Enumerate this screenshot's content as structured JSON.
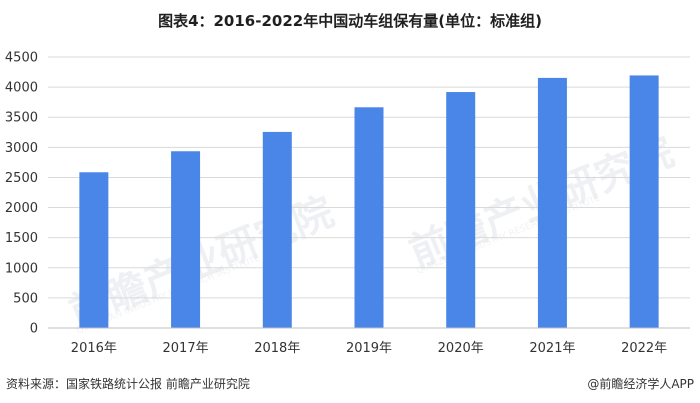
{
  "title": "图表4：2016-2022年中国动车组保有量(单位：标准组)",
  "footer": {
    "source": "资料来源：国家铁路统计公报 前瞻产业研究院",
    "credit": "@前瞻经济学人APP"
  },
  "watermark": {
    "text": "前瞻产业研究院",
    "sub": "QIANZHAN INDUSTRY RESEARCH INSTITUTE"
  },
  "colors": {
    "bar": "#4a86e8",
    "grid": "#d9d9d9",
    "axis": "#bfbfbf"
  },
  "chart_data": {
    "type": "bar",
    "title": "图表4：2016-2022年中国动车组保有量(单位：标准组)",
    "xlabel": "",
    "ylabel": "",
    "categories": [
      "2016年",
      "2017年",
      "2018年",
      "2019年",
      "2020年",
      "2021年",
      "2022年"
    ],
    "values": [
      2586,
      2935,
      3256,
      3665,
      3918,
      4153,
      4194
    ],
    "ylim": [
      0,
      4500
    ],
    "yticks": [
      0,
      500,
      1000,
      1500,
      2000,
      2500,
      3000,
      3500,
      4000,
      4500
    ],
    "grid": true,
    "legend": "none"
  }
}
